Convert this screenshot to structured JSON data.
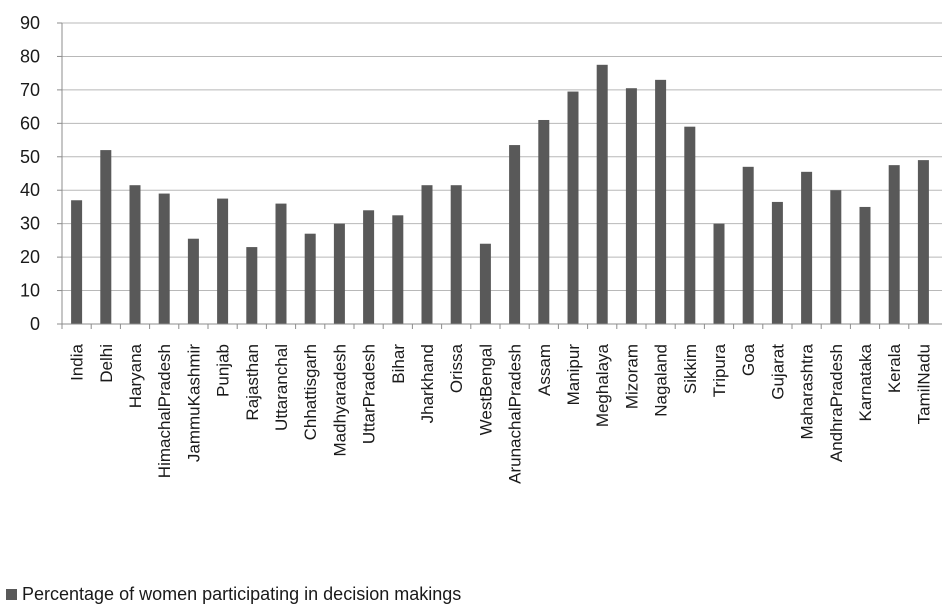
{
  "chart_data": {
    "type": "bar",
    "title": "",
    "xlabel": "",
    "ylabel": "",
    "ylim": [
      0,
      90
    ],
    "yticks": [
      0,
      10,
      20,
      30,
      40,
      50,
      60,
      70,
      80,
      90
    ],
    "grid": true,
    "legend_position": "bottom-left",
    "categories": [
      "India",
      "Delhi",
      "Haryana",
      "HimachalPradesh",
      "JammuKashmir",
      "Punjab",
      "Rajasthan",
      "Uttaranchal",
      "Chhattisgarh",
      "Madhyaradesh",
      "UttarPradesh",
      "Bihar",
      "Jharkhand",
      "Orissa",
      "WestBengal",
      "ArunachalPradesh",
      "Assam",
      "Manipur",
      "Meghalaya",
      "Mizoram",
      "Nagaland",
      "Sikkim",
      "Tripura",
      "Goa",
      "Gujarat",
      "Maharashtra",
      "AndhraPradesh",
      "Karnataka",
      "Kerala",
      "TamilNadu"
    ],
    "series": [
      {
        "name": "Percentage of women participating in decision makings",
        "color": "#595959",
        "values": [
          37,
          52,
          41.5,
          39,
          25.5,
          37.5,
          23,
          36,
          27,
          30,
          34,
          32.5,
          41.5,
          41.5,
          24,
          53.5,
          61,
          69.5,
          77.5,
          70.5,
          73,
          59,
          30,
          47,
          36.5,
          45.5,
          40,
          35,
          47.5,
          49
        ]
      }
    ]
  }
}
